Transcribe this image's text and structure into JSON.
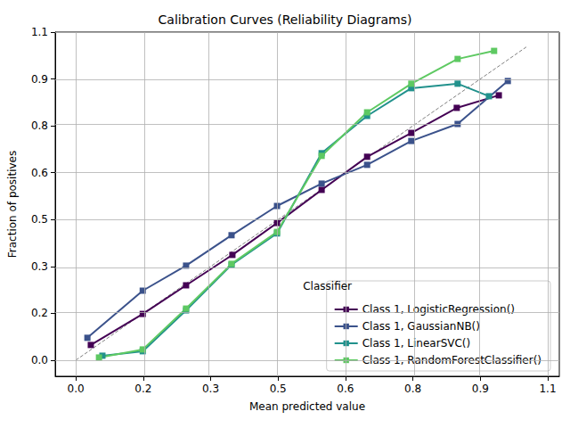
{
  "chart_data": {
    "type": "line",
    "title": "Calibration Curves (Reliability Diagrams)",
    "x_label": "Mean predicted value",
    "y_label": "Fraction of positives",
    "legend_title": "Classifier",
    "legend": "lower right",
    "grid": true,
    "xlim": [
      -0.048,
      1.127
    ],
    "ylim": [
      -0.054,
      1.1
    ],
    "xticks": [
      {
        "value": 0,
        "label": "0.0"
      },
      {
        "value": 0.1571,
        "label": "0.2"
      },
      {
        "value": 0.3143,
        "label": "0.3"
      },
      {
        "value": 0.4714,
        "label": "0.5"
      },
      {
        "value": 0.6286,
        "label": "0.6"
      },
      {
        "value": 0.7857,
        "label": "0.8"
      },
      {
        "value": 0.9429,
        "label": "0.9"
      },
      1.1
    ],
    "yticks": [
      {
        "value": 0,
        "label": "0.0"
      },
      {
        "value": 0.1571,
        "label": "0.2"
      },
      {
        "value": 0.3143,
        "label": "0.3"
      },
      {
        "value": 0.4714,
        "label": "0.5"
      },
      {
        "value": 0.6286,
        "label": "0.6"
      },
      {
        "value": 0.7857,
        "label": "0.8"
      },
      {
        "value": 0.9429,
        "label": "0.9"
      },
      1.1
    ],
    "series": [
      {
        "color": "#808080",
        "line_style": "dashed",
        "marker": "none",
        "x": [
          0,
          1.05
        ],
        "values": [
          0,
          1.05
        ]
      },
      {
        "name": "Class 1, LogisticRegression()",
        "color": "#440154",
        "marker": "square",
        "line_style": "solid",
        "x": [
          0.035,
          0.156,
          0.257,
          0.365,
          0.469,
          0.573,
          0.679,
          0.782,
          0.888,
          0.986
        ],
        "values": [
          0.051,
          0.155,
          0.251,
          0.353,
          0.46,
          0.571,
          0.682,
          0.762,
          0.846,
          0.888
        ]
      },
      {
        "name": "Class 1, GaussianNB()",
        "color": "#3b528b",
        "marker": "square",
        "line_style": "solid",
        "x": [
          0.027,
          0.156,
          0.257,
          0.363,
          0.469,
          0.573,
          0.679,
          0.782,
          0.89,
          1.007
        ],
        "values": [
          0.075,
          0.233,
          0.317,
          0.419,
          0.517,
          0.592,
          0.655,
          0.735,
          0.792,
          0.936
        ]
      },
      {
        "name": "Class 1, LinearSVC()",
        "color": "#21918c",
        "marker": "square",
        "line_style": "solid",
        "x": [
          0.062,
          0.156,
          0.257,
          0.363,
          0.469,
          0.573,
          0.679,
          0.782,
          0.89,
          0.963
        ],
        "values": [
          0.015,
          0.03,
          0.167,
          0.32,
          0.425,
          0.694,
          0.819,
          0.912,
          0.927,
          0.885
        ]
      },
      {
        "name": "Class 1, RandomForestClassifier()",
        "color": "#5ec962",
        "marker": "square",
        "line_style": "solid",
        "x": [
          0.054,
          0.156,
          0.257,
          0.363,
          0.469,
          0.573,
          0.679,
          0.782,
          0.89,
          0.975
        ],
        "values": [
          0.009,
          0.036,
          0.173,
          0.323,
          0.43,
          0.685,
          0.831,
          0.927,
          1.01,
          1.037
        ]
      }
    ]
  }
}
